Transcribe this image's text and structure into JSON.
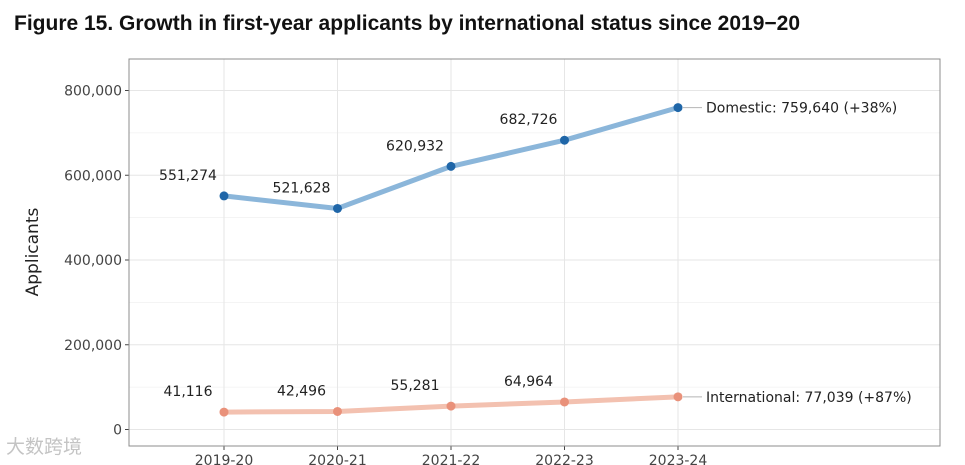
{
  "figure_title": "Figure 15. Growth in first-year applicants by international status since 2019−20",
  "watermark_text": "大数跨境",
  "colors": {
    "domestic_line": "#8bb6da",
    "domestic_point": "#1f66a8",
    "international_line": "#f3c1b0",
    "international_point": "#e9917a",
    "grid": "#e6e6e6",
    "panel_border": "#8c8c8c",
    "text": "#222222"
  },
  "chart_data": {
    "type": "line",
    "title": "Figure 15. Growth in first-year applicants by international status since 2019−20",
    "xlabel": "",
    "ylabel": "Applicants",
    "categories": [
      "2019-20",
      "2020-21",
      "2021-22",
      "2022-23",
      "2023-24"
    ],
    "ylim": [
      -20000,
      880000
    ],
    "yticks": [
      0,
      200000,
      400000,
      600000,
      800000
    ],
    "ytick_labels": [
      "0",
      "200,000",
      "400,000",
      "600,000",
      "800,000"
    ],
    "grid": true,
    "series": [
      {
        "name": "Domestic",
        "values": [
          551274,
          521628,
          620932,
          682726,
          759640
        ],
        "point_labels": [
          "551,274",
          "521,628",
          "620,932",
          "682,726"
        ],
        "end_label": "Domestic: 759,640 (+38%)"
      },
      {
        "name": "International",
        "values": [
          41116,
          42496,
          55281,
          64964,
          77039
        ],
        "point_labels": [
          "41,116",
          "42,496",
          "55,281",
          "64,964"
        ],
        "end_label": "International: 77,039 (+87%)"
      }
    ]
  }
}
